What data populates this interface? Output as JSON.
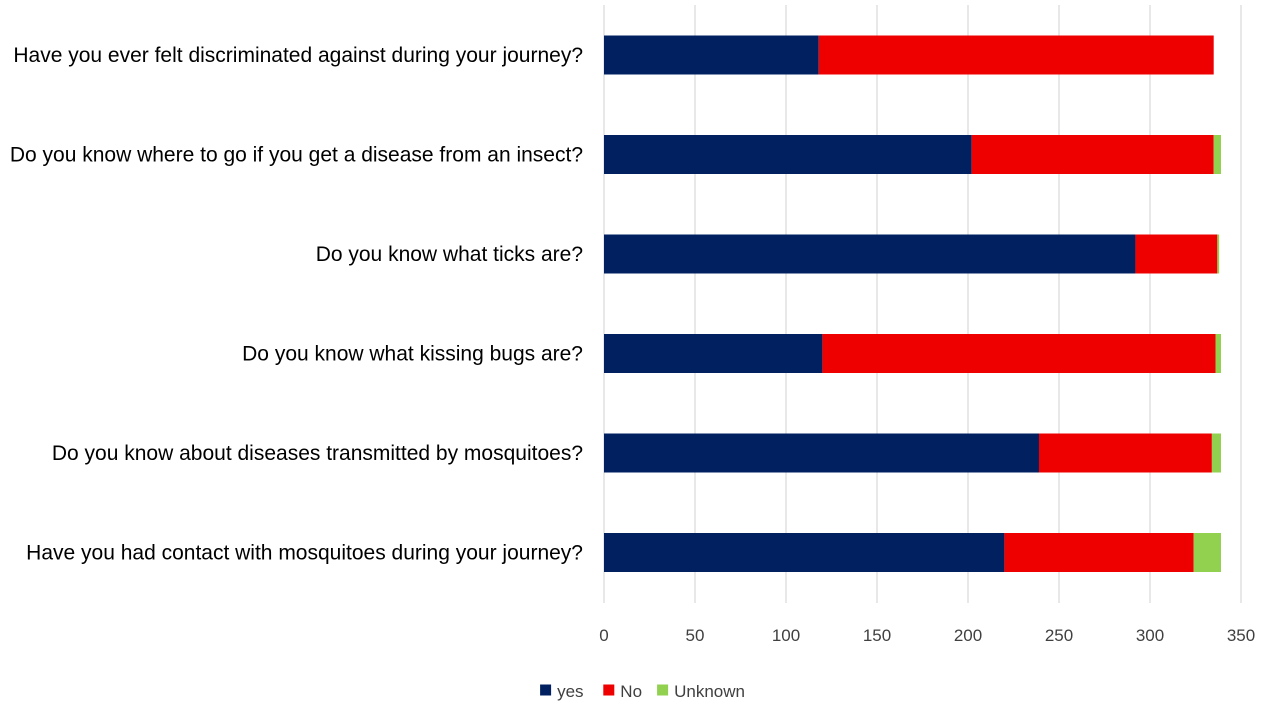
{
  "chart_data": {
    "type": "bar",
    "orientation": "horizontal",
    "stacked": true,
    "title": "",
    "xlabel": "",
    "ylabel": "",
    "xlim": [
      0,
      350
    ],
    "x_ticks": [
      0,
      50,
      100,
      150,
      200,
      250,
      300,
      350
    ],
    "grid": "vertical",
    "legend_position": "bottom",
    "categories": [
      "Have you ever felt discriminated against during your journey?",
      "Do you know where to go if you get a disease from an insect?",
      "Do you know what ticks are?",
      "Do you know what kissing bugs are?",
      "Do you know about diseases transmitted by mosquitoes?",
      "Have you had contact with mosquitoes during your journey?"
    ],
    "series": [
      {
        "name": "yes",
        "color": "#002060",
        "values": [
          118,
          202,
          292,
          120,
          239,
          220
        ]
      },
      {
        "name": "No",
        "color": "#ee0000",
        "values": [
          217,
          133,
          45,
          216,
          95,
          104
        ]
      },
      {
        "name": "Unknown",
        "color": "#92d050",
        "values": [
          0,
          4,
          1,
          3,
          5,
          15
        ]
      }
    ]
  }
}
